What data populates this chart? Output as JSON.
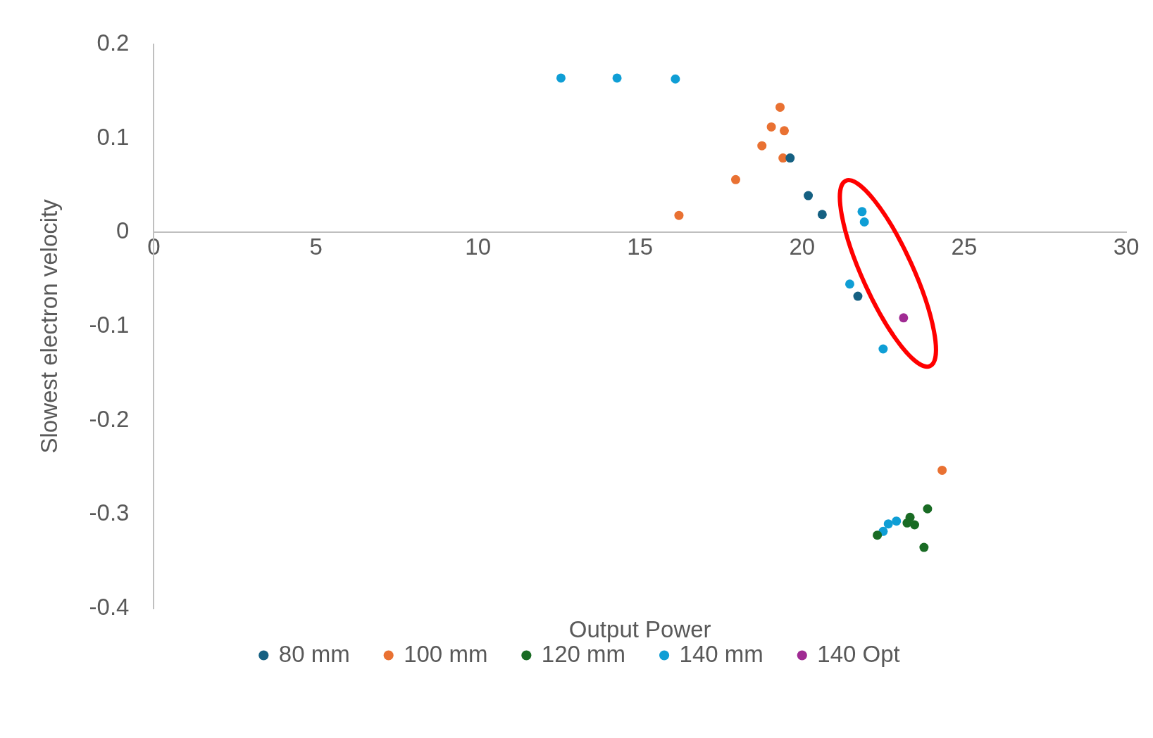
{
  "chart_data": {
    "type": "scatter",
    "xlabel": "Output Power",
    "ylabel": "Slowest electron velocity",
    "xlim": [
      0,
      30
    ],
    "ylim": [
      -0.4,
      0.2
    ],
    "xticks": [
      0,
      5,
      10,
      15,
      20,
      25,
      30
    ],
    "yticks": [
      -0.4,
      -0.3,
      -0.2,
      -0.1,
      0,
      0.1,
      0.2
    ],
    "grid": false,
    "legend": "bottom",
    "marker": "circle",
    "series": [
      {
        "name": "80 mm",
        "color": "#156082",
        "x": [
          19.63,
          20.19,
          20.62,
          21.72
        ],
        "values": [
          0.079,
          0.039,
          0.019,
          -0.068
        ]
      },
      {
        "name": "100 mm",
        "color": "#e97132",
        "x": [
          19.32,
          19.05,
          19.45,
          18.76,
          19.41,
          17.95,
          16.2,
          24.32
        ],
        "values": [
          0.133,
          0.112,
          0.108,
          0.092,
          0.079,
          0.056,
          0.018,
          -0.253
        ]
      },
      {
        "name": "120 mm",
        "color": "#196b24",
        "x": [
          22.32,
          23.33,
          23.24,
          23.47,
          23.87,
          23.76
        ],
        "values": [
          -0.322,
          -0.303,
          -0.309,
          -0.311,
          -0.294,
          -0.335
        ]
      },
      {
        "name": "140 mm",
        "color": "#0f9ed5",
        "x": [
          12.56,
          14.29,
          16.09,
          21.85,
          21.92,
          21.47,
          22.5,
          22.5,
          22.66,
          22.91
        ],
        "values": [
          0.164,
          0.164,
          0.163,
          0.022,
          0.011,
          -0.055,
          -0.124,
          -0.318,
          -0.31,
          -0.307
        ]
      },
      {
        "name": "140 Opt",
        "color": "#a02b93",
        "x": [
          23.13
        ],
        "values": [
          -0.091
        ]
      }
    ]
  }
}
